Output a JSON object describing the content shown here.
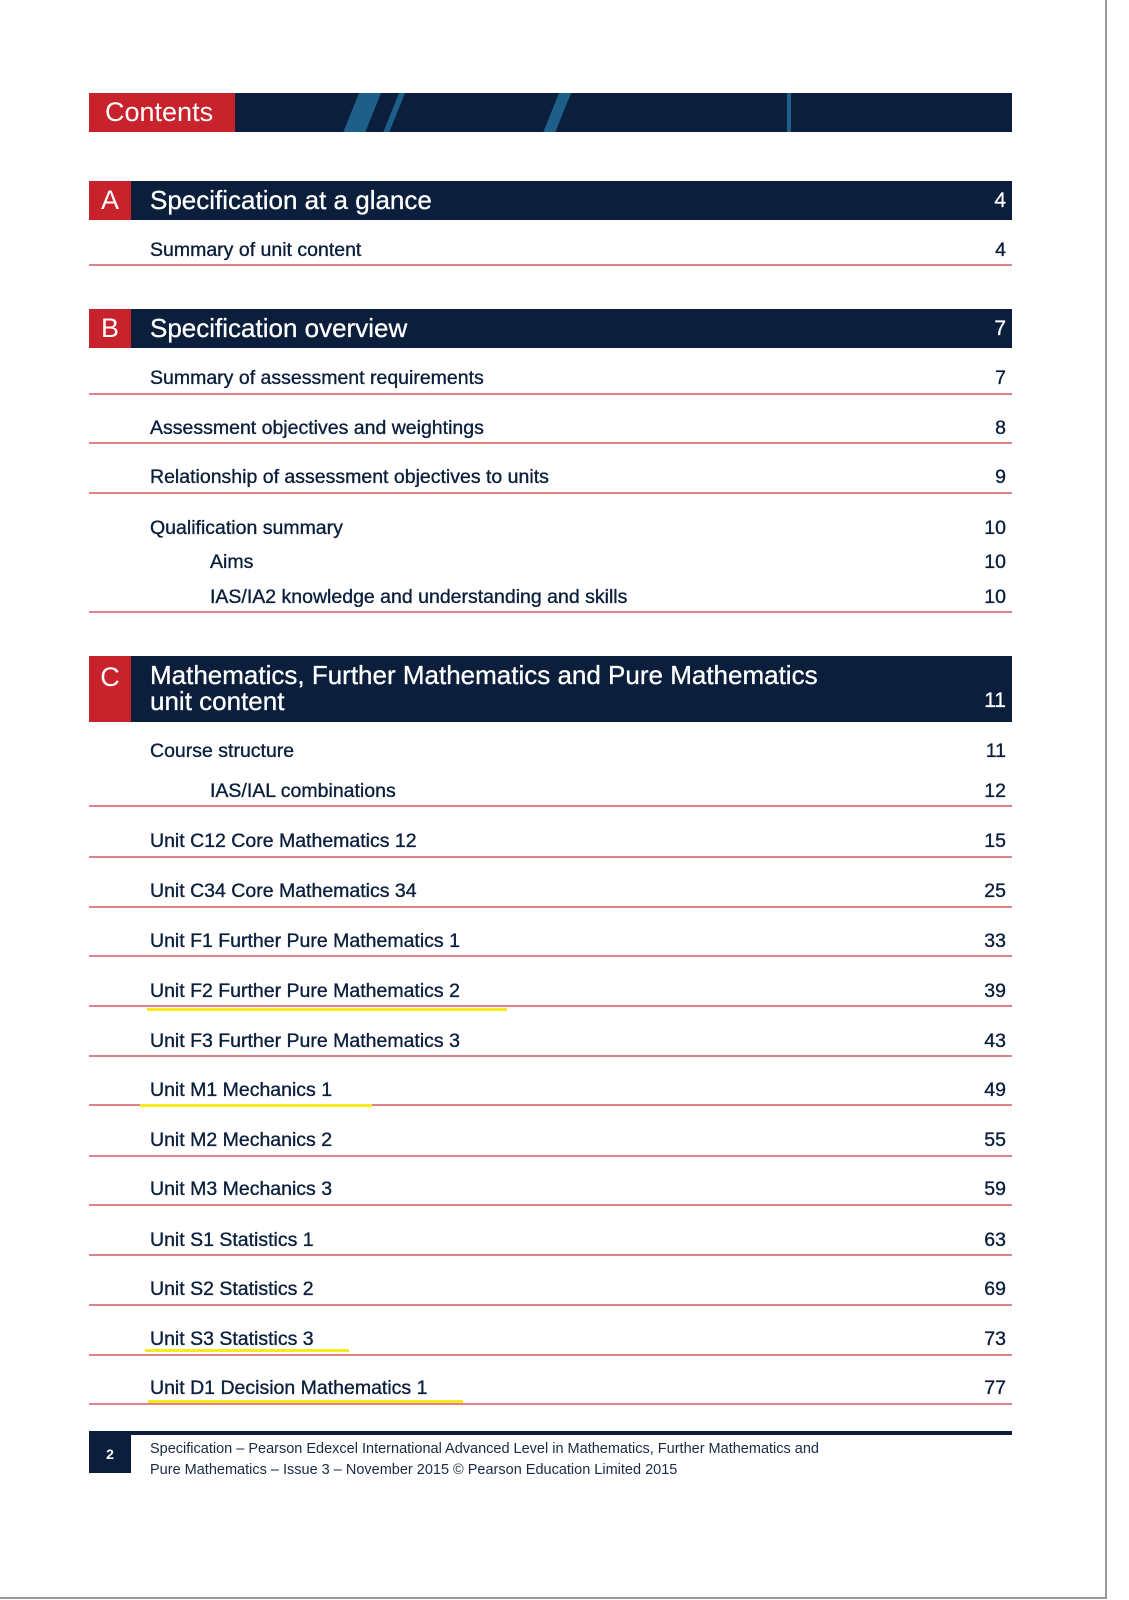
{
  "header": {
    "title": "Contents"
  },
  "sections": [
    {
      "letter": "A",
      "title": "Specification at a glance",
      "page": "4",
      "items": [
        {
          "label": "Summary of unit content",
          "page": "4"
        }
      ]
    },
    {
      "letter": "B",
      "title": "Specification overview",
      "page": "7",
      "items": [
        {
          "label": "Summary of assessment requirements",
          "page": "7"
        },
        {
          "label": "Assessment objectives and weightings",
          "page": "8"
        },
        {
          "label": "Relationship of assessment objectives to units",
          "page": "9"
        },
        {
          "label": "Qualification summary",
          "page": "10"
        },
        {
          "label": "Aims",
          "page": "10"
        },
        {
          "label": "IAS/IA2 knowledge and understanding and skills",
          "page": "10"
        }
      ]
    },
    {
      "letter": "C",
      "title_line1": "Mathematics, Further Mathematics and Pure Mathematics",
      "title_line2": "unit content",
      "page": "11",
      "items": [
        {
          "label": "Course structure",
          "page": "11"
        },
        {
          "label": "IAS/IAL combinations",
          "page": "12"
        },
        {
          "label": "Unit C12 Core Mathematics 12",
          "page": "15"
        },
        {
          "label": "Unit C34 Core Mathematics 34",
          "page": "25"
        },
        {
          "label": "Unit F1 Further Pure Mathematics 1",
          "page": "33"
        },
        {
          "label": "Unit F2 Further Pure Mathematics 2",
          "page": "39"
        },
        {
          "label": "Unit F3 Further Pure Mathematics 3",
          "page": "43"
        },
        {
          "label": "Unit M1 Mechanics 1",
          "page": "49"
        },
        {
          "label": "Unit M2 Mechanics 2",
          "page": "55"
        },
        {
          "label": "Unit M3 Mechanics 3",
          "page": "59"
        },
        {
          "label": "Unit S1 Statistics 1",
          "page": "63"
        },
        {
          "label": "Unit S2 Statistics 2",
          "page": "69"
        },
        {
          "label": "Unit S3 Statistics 3",
          "page": "73"
        },
        {
          "label": "Unit D1 Decision Mathematics 1",
          "page": "77"
        }
      ]
    }
  ],
  "highlight_color": "#f6ea1a",
  "colors": {
    "navy": "#0b1f3d",
    "red": "#c8232c",
    "rule": "#e0828a"
  },
  "footer": {
    "page_number": "2",
    "line1": "Specification – Pearson Edexcel International Advanced Level in Mathematics, Further Mathematics and",
    "line2": "Pure Mathematics – Issue 3 – November 2015 © Pearson Education Limited 2015"
  }
}
